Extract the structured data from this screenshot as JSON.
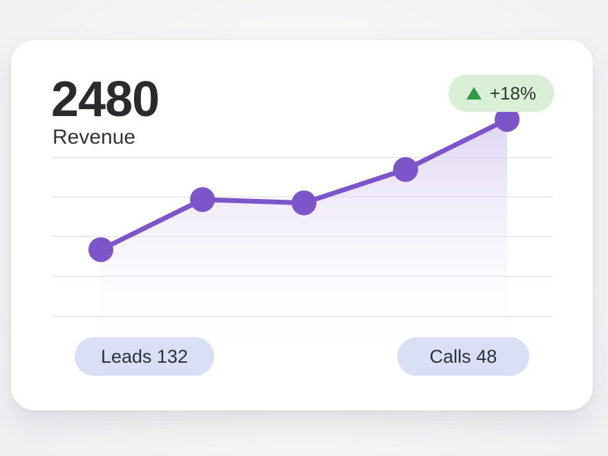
{
  "metric": {
    "value": "2480",
    "label": "Revenue"
  },
  "trend": {
    "text": "+18%",
    "icon": "triangle-up-icon",
    "badge_color": "#d9efd6",
    "icon_color": "#2f9a46"
  },
  "stats": [
    {
      "text": "Leads 132"
    },
    {
      "text": "Calls 48"
    }
  ],
  "colors": {
    "line": "#7b55c9",
    "point": "#7b55c9",
    "area_top": "#d9cdf1",
    "pill": "#d9dff5",
    "grid": "#e9e9ee"
  },
  "chart_data": {
    "type": "area",
    "x": [
      1,
      2,
      3,
      4,
      5
    ],
    "values": [
      40,
      55,
      54,
      64,
      79
    ],
    "ylim": [
      20,
      80
    ],
    "xlim": [
      1,
      5
    ],
    "grid": true,
    "legend": "none"
  }
}
